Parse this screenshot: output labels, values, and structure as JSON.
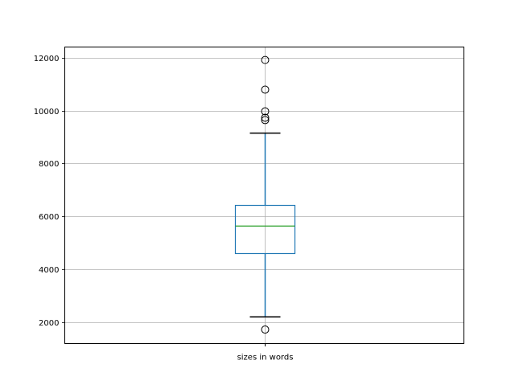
{
  "chart_data": {
    "type": "boxplot",
    "title": "",
    "xlabel": "",
    "ylabel": "",
    "categories": [
      "sizes in words"
    ],
    "ylim": [
      1200,
      12400
    ],
    "yticks": [
      2000,
      4000,
      6000,
      8000,
      10000,
      12000
    ],
    "ytick_labels": [
      "2000",
      "4000",
      "6000",
      "8000",
      "10000",
      "12000"
    ],
    "grid": true,
    "boxes": [
      {
        "name": "sizes in words",
        "whisker_low": 2210,
        "q1": 4600,
        "median": 5640,
        "q3": 6420,
        "whisker_high": 9150,
        "outliers": [
          1730,
          9640,
          9730,
          9970,
          10790,
          11910
        ]
      }
    ],
    "colors": {
      "box": "#1f77b4",
      "median": "#2ca02c",
      "caps": "#000000",
      "grid": "#b0b0b0"
    }
  }
}
